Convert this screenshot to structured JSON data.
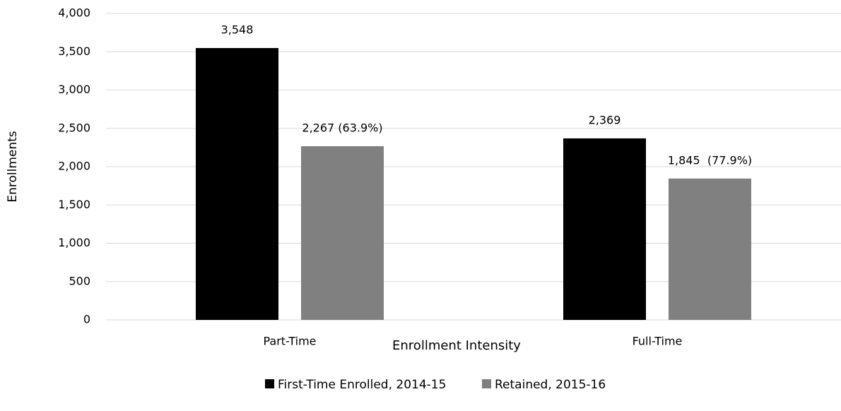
{
  "chart_data": {
    "type": "bar",
    "categories": [
      "Part-Time",
      "Full-Time"
    ],
    "xlabel": "Enrollment Intensity",
    "ylabel": "Enrollments",
    "series": [
      {
        "name": "First-Time Enrolled, 2014-15",
        "color": "#000000",
        "values": [
          3548,
          2369
        ],
        "value_labels": [
          "3,548",
          "2,369"
        ]
      },
      {
        "name": "Retained, 2015-16",
        "color": "#808080",
        "values": [
          2267,
          1845
        ],
        "value_labels": [
          "2,267 (63.9%)",
          "1,845  (77.9%)"
        ]
      }
    ],
    "ylim": [
      0,
      4000
    ],
    "yticks": [
      0,
      500,
      {
        "value": 1000,
        "label": "1,000"
      },
      {
        "value": 1500,
        "label": "1,500"
      },
      {
        "value": 2000,
        "label": "2,000"
      },
      {
        "value": 2500,
        "label": "2,500"
      },
      {
        "value": 3000,
        "label": "3,000"
      },
      {
        "value": 3500,
        "label": "3,500"
      },
      {
        "value": 4000,
        "label": "4,000"
      }
    ],
    "grid": true,
    "legend": "bottom"
  }
}
